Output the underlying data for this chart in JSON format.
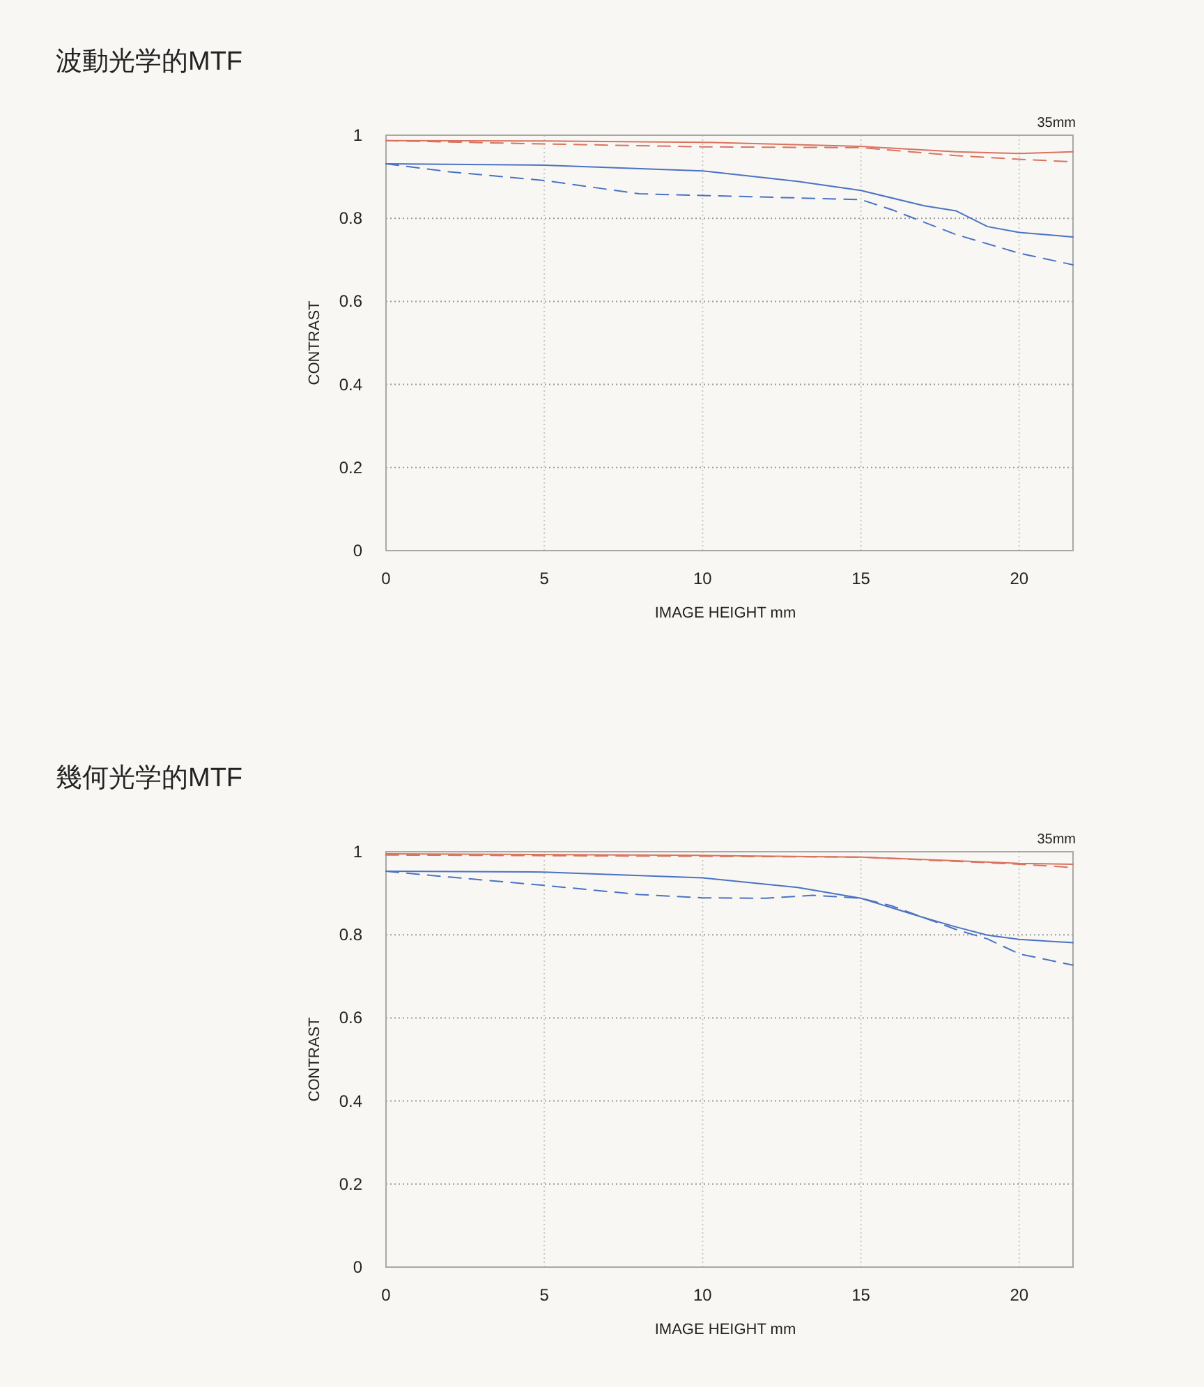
{
  "chart_data": [
    {
      "type": "line",
      "title": "波動光学的MTF",
      "xlabel": "IMAGE HEIGHT  mm",
      "ylabel": "CONTRAST",
      "annotations": [
        "35mm"
      ],
      "xlim": [
        0,
        21.7
      ],
      "ylim": [
        0,
        1
      ],
      "xticks": [
        0,
        5,
        10,
        15,
        20
      ],
      "yticks": [
        0,
        0.2,
        0.4,
        0.6,
        0.8,
        1
      ],
      "grid": true,
      "marker": "none",
      "series": [
        {
          "color": "#d9735f",
          "line_style": "solid",
          "x": [
            0,
            5,
            10,
            15,
            18,
            20,
            21.7
          ],
          "values": [
            0.987,
            0.986,
            0.983,
            0.973,
            0.96,
            0.956,
            0.96
          ]
        },
        {
          "color": "#d9735f",
          "line_style": "dashed",
          "x": [
            0,
            5,
            10,
            15,
            18,
            20,
            21.7
          ],
          "values": [
            0.987,
            0.979,
            0.972,
            0.97,
            0.951,
            0.942,
            0.936
          ]
        },
        {
          "color": "#4a72c4",
          "line_style": "solid",
          "x": [
            0,
            5,
            10,
            13,
            15,
            17,
            18,
            19,
            20,
            21.7
          ],
          "values": [
            0.931,
            0.928,
            0.914,
            0.889,
            0.867,
            0.83,
            0.818,
            0.78,
            0.766,
            0.755
          ]
        },
        {
          "color": "#4a72c4",
          "line_style": "dashed",
          "x": [
            0,
            2,
            5,
            8,
            10,
            13,
            15,
            16,
            18,
            20,
            21.7
          ],
          "values": [
            0.931,
            0.912,
            0.891,
            0.859,
            0.855,
            0.849,
            0.845,
            0.82,
            0.761,
            0.716,
            0.688
          ]
        }
      ]
    },
    {
      "type": "line",
      "title": "幾何光学的MTF",
      "xlabel": "IMAGE HEIGHT  mm",
      "ylabel": "CONTRAST",
      "annotations": [
        "35mm"
      ],
      "xlim": [
        0,
        21.7
      ],
      "ylim": [
        0,
        1
      ],
      "xticks": [
        0,
        5,
        10,
        15,
        20
      ],
      "yticks": [
        0,
        0.2,
        0.4,
        0.6,
        0.8,
        1
      ],
      "grid": true,
      "marker": "none",
      "series": [
        {
          "color": "#d9735f",
          "line_style": "solid",
          "x": [
            0,
            10,
            15,
            18,
            20,
            21.7
          ],
          "values": [
            0.995,
            0.991,
            0.987,
            0.978,
            0.972,
            0.97
          ]
        },
        {
          "color": "#d9735f",
          "line_style": "dashed",
          "x": [
            0,
            10,
            15,
            20,
            21.7
          ],
          "values": [
            0.992,
            0.989,
            0.987,
            0.97,
            0.962
          ]
        },
        {
          "color": "#4a72c4",
          "line_style": "solid",
          "x": [
            0,
            5,
            10,
            13,
            15,
            17,
            18,
            19,
            20,
            21.7
          ],
          "values": [
            0.953,
            0.951,
            0.937,
            0.914,
            0.888,
            0.841,
            0.819,
            0.799,
            0.789,
            0.781
          ]
        },
        {
          "color": "#4a72c4",
          "line_style": "dashed",
          "x": [
            0,
            2,
            5,
            8,
            10,
            12,
            13.5,
            15,
            16,
            18,
            19,
            20,
            21.7
          ],
          "values": [
            0.953,
            0.939,
            0.919,
            0.897,
            0.889,
            0.888,
            0.895,
            0.888,
            0.869,
            0.813,
            0.79,
            0.754,
            0.727
          ]
        }
      ]
    }
  ]
}
